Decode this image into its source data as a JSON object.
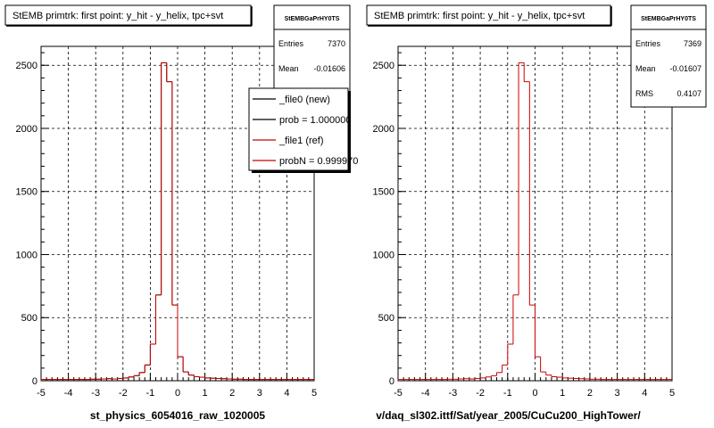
{
  "footer_text": "",
  "chart_data": [
    {
      "type": "histogram",
      "title": "StEMB primtrk: first point: y_hit - y_helix, tpc+svt",
      "xlabel": "st_physics_6054016_raw_1020005",
      "ylabel": "",
      "xlim": [
        -5,
        5
      ],
      "ylim": [
        0,
        2650
      ],
      "xticks": [
        "-5",
        "-4",
        "-3",
        "-2",
        "-1",
        "0",
        "1",
        "2",
        "3",
        "4",
        "5"
      ],
      "yticks": [
        "0",
        "500",
        "1000",
        "1500",
        "2000",
        "2500"
      ],
      "grid": true,
      "stats": {
        "name": "StEMBGaPrHY0TS",
        "rows": [
          {
            "label": "Entries",
            "value": "7370"
          },
          {
            "label": "Mean",
            "value": "-0.01606"
          }
        ]
      },
      "legend": {
        "placement": "top-right",
        "entries": [
          {
            "label": "_file0 (new)",
            "color": "#000000"
          },
          {
            "label": "prob = 1.000000",
            "color": "#000000"
          },
          {
            "label": "_file1 (ref)",
            "color": "#cc0000"
          },
          {
            "label": "probN = 0.999970",
            "color": "#cc0000"
          }
        ]
      },
      "series": [
        {
          "name": "_file0 (new)",
          "color": "#000000",
          "bin_low": -5,
          "bin_width": 0.2,
          "values": [
            10,
            10,
            10,
            10,
            10,
            10,
            10,
            10,
            10,
            12,
            12,
            14,
            16,
            14,
            18,
            22,
            30,
            40,
            65,
            125,
            290,
            680,
            2520,
            2370,
            600,
            190,
            70,
            45,
            32,
            28,
            22,
            20,
            18,
            16,
            14,
            12,
            12,
            10,
            10,
            10,
            10,
            10,
            10,
            10,
            10,
            10,
            10,
            10,
            10,
            10
          ]
        },
        {
          "name": "_file1 (ref)",
          "color": "#cc0000",
          "bin_low": -5,
          "bin_width": 0.2,
          "values": [
            10,
            10,
            10,
            10,
            10,
            10,
            10,
            10,
            10,
            12,
            12,
            14,
            16,
            14,
            18,
            22,
            30,
            40,
            65,
            125,
            290,
            680,
            2520,
            2370,
            600,
            190,
            70,
            45,
            32,
            28,
            22,
            20,
            18,
            16,
            14,
            12,
            12,
            10,
            10,
            10,
            10,
            10,
            10,
            10,
            10,
            10,
            10,
            10,
            10,
            10
          ]
        }
      ]
    },
    {
      "type": "histogram",
      "title": "StEMB primtrk: first point: y_hit - y_helix, tpc+svt",
      "xlabel": "v/daq_sl302.ittf/Sat/year_2005/CuCu200_HighTower/",
      "ylabel": "",
      "xlim": [
        -5,
        5
      ],
      "ylim": [
        0,
        2650
      ],
      "xticks": [
        "-5",
        "-4",
        "-3",
        "-2",
        "-1",
        "0",
        "1",
        "2",
        "3",
        "4",
        "5"
      ],
      "yticks": [
        "0",
        "500",
        "1000",
        "1500",
        "2000",
        "2500"
      ],
      "grid": true,
      "stats": {
        "name": "StEMBGaPrHY0TS",
        "rows": [
          {
            "label": "Entries",
            "value": "7369"
          },
          {
            "label": "Mean",
            "value": "-0.01607"
          },
          {
            "label": "RMS",
            "value": "0.4107"
          }
        ]
      },
      "series": [
        {
          "name": "",
          "color": "#cc0000",
          "bin_low": -5,
          "bin_width": 0.2,
          "values": [
            10,
            10,
            10,
            10,
            10,
            10,
            10,
            10,
            10,
            12,
            12,
            14,
            16,
            14,
            18,
            22,
            30,
            40,
            65,
            125,
            290,
            680,
            2520,
            2370,
            600,
            190,
            70,
            45,
            32,
            28,
            22,
            20,
            18,
            16,
            14,
            12,
            12,
            10,
            10,
            10,
            10,
            10,
            10,
            10,
            10,
            10,
            10,
            10,
            10,
            10
          ]
        }
      ]
    }
  ]
}
